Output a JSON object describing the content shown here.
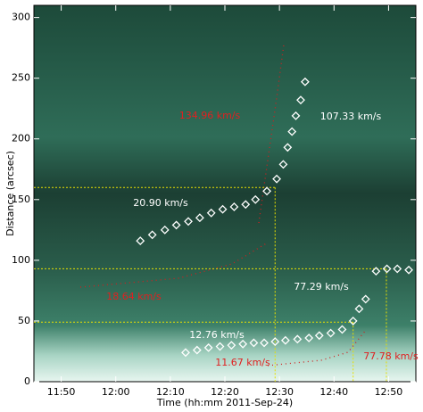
{
  "chart_data": {
    "type": "scatter",
    "xlabel": "Time (hh:mm 2011-Sep-24)",
    "ylabel": "Distance (arcsec)",
    "xlim": [
      705,
      775
    ],
    "ylim": [
      0,
      310
    ],
    "xticks": [
      {
        "value": 710,
        "label": "11:50"
      },
      {
        "value": 720,
        "label": "12:00"
      },
      {
        "value": 730,
        "label": "12:10"
      },
      {
        "value": 740,
        "label": "12:20"
      },
      {
        "value": 750,
        "label": "12:30"
      },
      {
        "value": 760,
        "label": "12:40"
      },
      {
        "value": 770,
        "label": "12:50"
      }
    ],
    "yticks": [
      0,
      50,
      100,
      150,
      200,
      250,
      300
    ],
    "series": [
      {
        "color": "#ffffff",
        "x": [
          724.5,
          726.7,
          729.0,
          731.1,
          733.3,
          735.4,
          737.5,
          739.6,
          741.7,
          743.8,
          745.6,
          747.7,
          749.5,
          750.7,
          751.5,
          752.3,
          753.0,
          753.9,
          754.7
        ],
        "values": [
          116,
          121,
          125,
          129,
          132,
          135,
          139,
          142,
          144,
          146,
          150,
          157,
          167,
          179,
          193,
          206,
          219,
          232,
          247
        ]
      },
      {
        "color": "#ffffff",
        "x": [
          732.8,
          734.9,
          737.0,
          739.1,
          741.2,
          743.3,
          745.3,
          747.2,
          749.2,
          751.1,
          753.3,
          755.4,
          757.3,
          759.4,
          761.5,
          763.5,
          764.6,
          765.8,
          767.7,
          769.7,
          771.6,
          773.7
        ],
        "values": [
          24,
          26,
          28,
          29,
          30,
          31,
          32,
          32,
          33,
          34,
          35,
          36,
          38,
          40,
          43,
          50,
          60,
          68,
          91,
          93,
          93,
          92
        ]
      }
    ],
    "guides": {
      "color": "#e8e000",
      "x": [
        749.2,
        769.6,
        763.5
      ],
      "y": [
        160,
        93,
        49
      ]
    },
    "annotations": [
      {
        "text": "134.96 km/s",
        "color": "#e02020"
      },
      {
        "text": "107.33 km/s",
        "color": "#ffffff"
      },
      {
        "text": "20.90 km/s",
        "color": "#ffffff"
      },
      {
        "text": "18.64 km/s",
        "color": "#e02020"
      },
      {
        "text": "77.29 km/s",
        "color": "#ffffff"
      },
      {
        "text": "12.76 km/s",
        "color": "#ffffff"
      },
      {
        "text": "11.67 km/s",
        "color": "#e02020"
      },
      {
        "text": "77.78 km/s",
        "color": "#e02020"
      }
    ]
  }
}
